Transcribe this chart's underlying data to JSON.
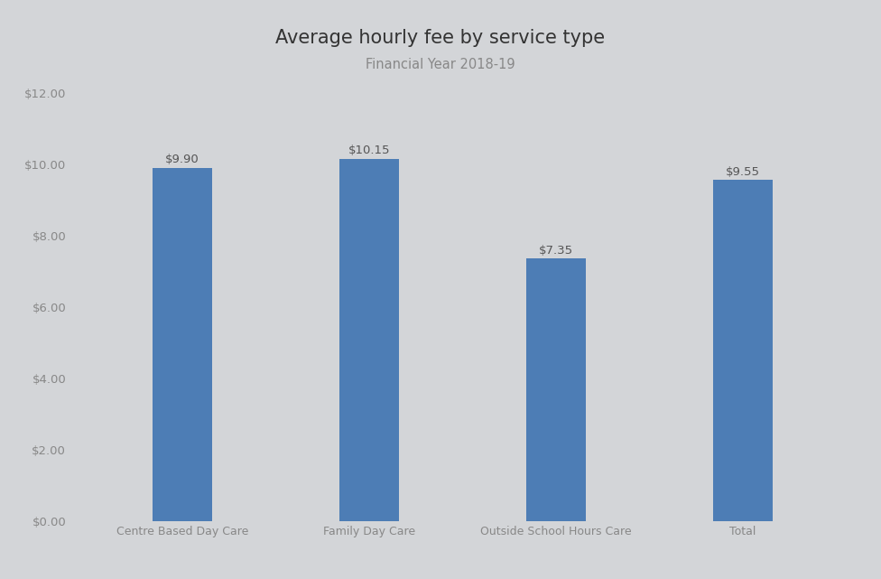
{
  "categories": [
    "Centre Based Day Care",
    "Family Day Care",
    "Outside School Hours Care",
    "Total"
  ],
  "values": [
    9.9,
    10.15,
    7.35,
    9.55
  ],
  "labels": [
    "$9.90",
    "$10.15",
    "$7.35",
    "$9.55"
  ],
  "bar_color": "#4d7db5",
  "background_color": "#d3d5d8",
  "title": "Average hourly fee by service type",
  "subtitle": "Financial Year 2018-19",
  "title_fontsize": 15,
  "subtitle_fontsize": 10.5,
  "ylabel_fontsize": 9.5,
  "xlabel_fontsize": 9,
  "label_fontsize": 9.5,
  "ylim": [
    0,
    12
  ],
  "yticks": [
    0,
    2,
    4,
    6,
    8,
    10,
    12
  ],
  "bar_width": 0.32,
  "tick_color": "#888888",
  "label_color": "#555555",
  "title_color": "#333333"
}
